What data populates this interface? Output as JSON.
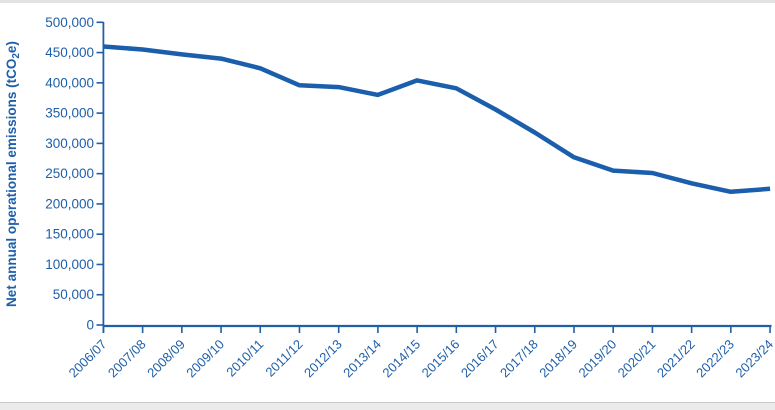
{
  "chart_data": {
    "type": "line",
    "title": "",
    "xlabel": "",
    "ylabel": "Net annual operational emissions (tCO2e)",
    "ylabel_parts": {
      "pre": "Net annual operational emissions (tCO",
      "sub": "2",
      "post": "e)"
    },
    "categories": [
      "2006/07",
      "2007/08",
      "2008/09",
      "2009/10",
      "2010/11",
      "2011/12",
      "2012/13",
      "2013/14",
      "2014/15",
      "2015/16",
      "2016/17",
      "2017/18",
      "2018/19",
      "2019/20",
      "2020/21",
      "2021/22",
      "2022/23",
      "2023/24"
    ],
    "series": [
      {
        "name": "Net annual operational emissions",
        "values": [
          460000,
          455000,
          447000,
          440000,
          424000,
          396000,
          393000,
          380000,
          404000,
          391000,
          356000,
          318000,
          277000,
          255000,
          251000,
          234000,
          220000,
          225000
        ]
      }
    ],
    "ylim": [
      0,
      500000
    ],
    "ytick_step": 50000,
    "ytick_labels": [
      "0",
      "50,000",
      "100,000",
      "150,000",
      "200,000",
      "250,000",
      "300,000",
      "350,000",
      "400,000",
      "450,000",
      "500,000"
    ],
    "grid": false,
    "legend_position": "none",
    "x_label_rotation_deg": 45
  },
  "colors": {
    "accent": "#1B5EAC",
    "line": "#1B5EAC",
    "axis": "#1F5FA9",
    "label_text": "#1F5FA9",
    "background": "#ffffff",
    "top_strip": "#e2e2e2",
    "bottom_strip": "#ebebeb",
    "bottom_strip_border": "#c8c8c8"
  }
}
